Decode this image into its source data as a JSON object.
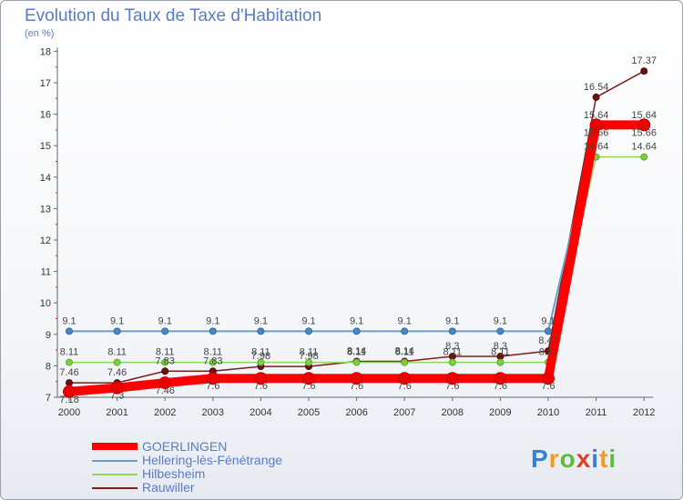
{
  "title": "Evolution du Taux de Taxe d'Habitation",
  "subtitle": "(en %)",
  "logo_text": "Proxiti",
  "chart_data": {
    "type": "line",
    "title": "Evolution du Taux de Taxe d'Habitation",
    "ylabel": "(en %)",
    "xlabel": "",
    "ylim": [
      7,
      18
    ],
    "y_ticks": [
      "7",
      "8",
      "9",
      "10",
      "11",
      "12",
      "13",
      "14",
      "15",
      "16",
      "17",
      "18"
    ],
    "x": [
      "2000",
      "2001",
      "2002",
      "2003",
      "2004",
      "2005",
      "2006",
      "2007",
      "2008",
      "2009",
      "2010",
      "2011",
      "2012"
    ],
    "series": [
      {
        "name": "GOERLINGEN",
        "color": "#ff0000",
        "values": [
          7.18,
          7.3,
          7.46,
          7.6,
          7.6,
          7.6,
          7.6,
          7.6,
          7.6,
          7.6,
          7.6,
          15.66,
          15.66
        ],
        "labels": [
          "7.18",
          "7.3",
          "7.46",
          "7.6",
          "7.6",
          "7.6",
          "7.6",
          "7.6",
          "7.6",
          "7.6",
          "7.6",
          "15.66",
          "15.66"
        ]
      },
      {
        "name": "Hellering-lès-Fénétrange",
        "color": "#6a9fcb",
        "values": [
          9.1,
          9.1,
          9.1,
          9.1,
          9.1,
          9.1,
          9.1,
          9.1,
          9.1,
          9.1,
          9.1,
          15.64,
          15.64
        ],
        "labels": [
          "9.1",
          "9.1",
          "9.1",
          "9.1",
          "9.1",
          "9.1",
          "9.1",
          "9.1",
          "9.1",
          "9.1",
          "9.1",
          "15.64",
          "15.64"
        ]
      },
      {
        "name": "Hilbesheim",
        "color": "#8fd65a",
        "values": [
          8.11,
          8.11,
          8.11,
          8.11,
          8.11,
          8.11,
          8.11,
          8.11,
          8.11,
          8.11,
          8.11,
          14.64,
          14.64
        ],
        "labels": [
          "8.11",
          "8.11",
          "8.11",
          "8.11",
          "8.11",
          "8.11",
          "8.11",
          "8.11",
          "8.11",
          "8.11",
          "8.11",
          "14.64",
          "14.64"
        ]
      },
      {
        "name": "Rauwiller",
        "color": "#7a1f1f",
        "values": [
          7.46,
          7.46,
          7.83,
          7.83,
          7.98,
          7.98,
          8.14,
          8.14,
          8.3,
          8.3,
          8.47,
          16.54,
          17.37
        ],
        "labels": [
          "7.46",
          "7.46",
          "7.83",
          "7.83",
          "7.98",
          "7.98",
          "8.14",
          "8.14",
          "8.3",
          "8.3",
          "8.47",
          "16.54",
          "17.37"
        ]
      }
    ],
    "legend_position": "bottom-left"
  }
}
